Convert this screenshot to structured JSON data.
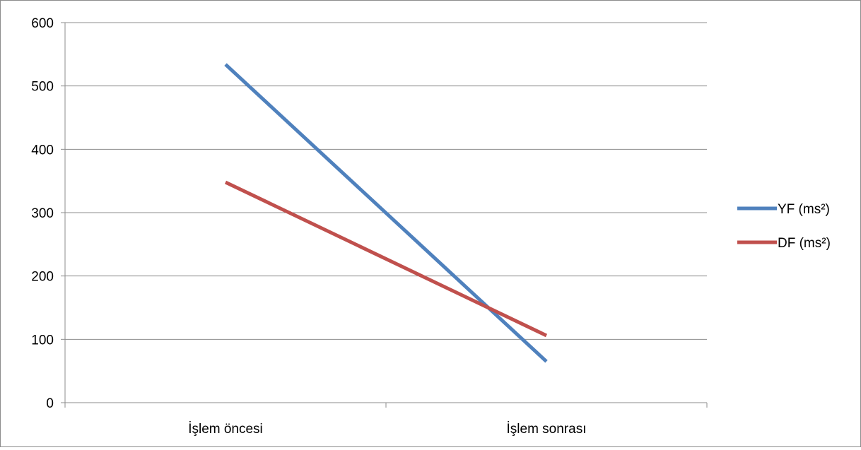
{
  "chart_data": {
    "type": "line",
    "categories": [
      "İşlem öncesi",
      "İşlem sonrası"
    ],
    "series": [
      {
        "name": "YF (ms²)",
        "values": [
          534,
          65
        ],
        "color": "#4f81bd"
      },
      {
        "name": "DF (ms²)",
        "values": [
          348,
          106
        ],
        "color": "#c0504d"
      }
    ],
    "ylim": [
      0,
      600
    ],
    "yticks": [
      0,
      100,
      200,
      300,
      400,
      500,
      600
    ],
    "grid": true,
    "legend": "right",
    "gridline_color": "#8c8c8c"
  }
}
